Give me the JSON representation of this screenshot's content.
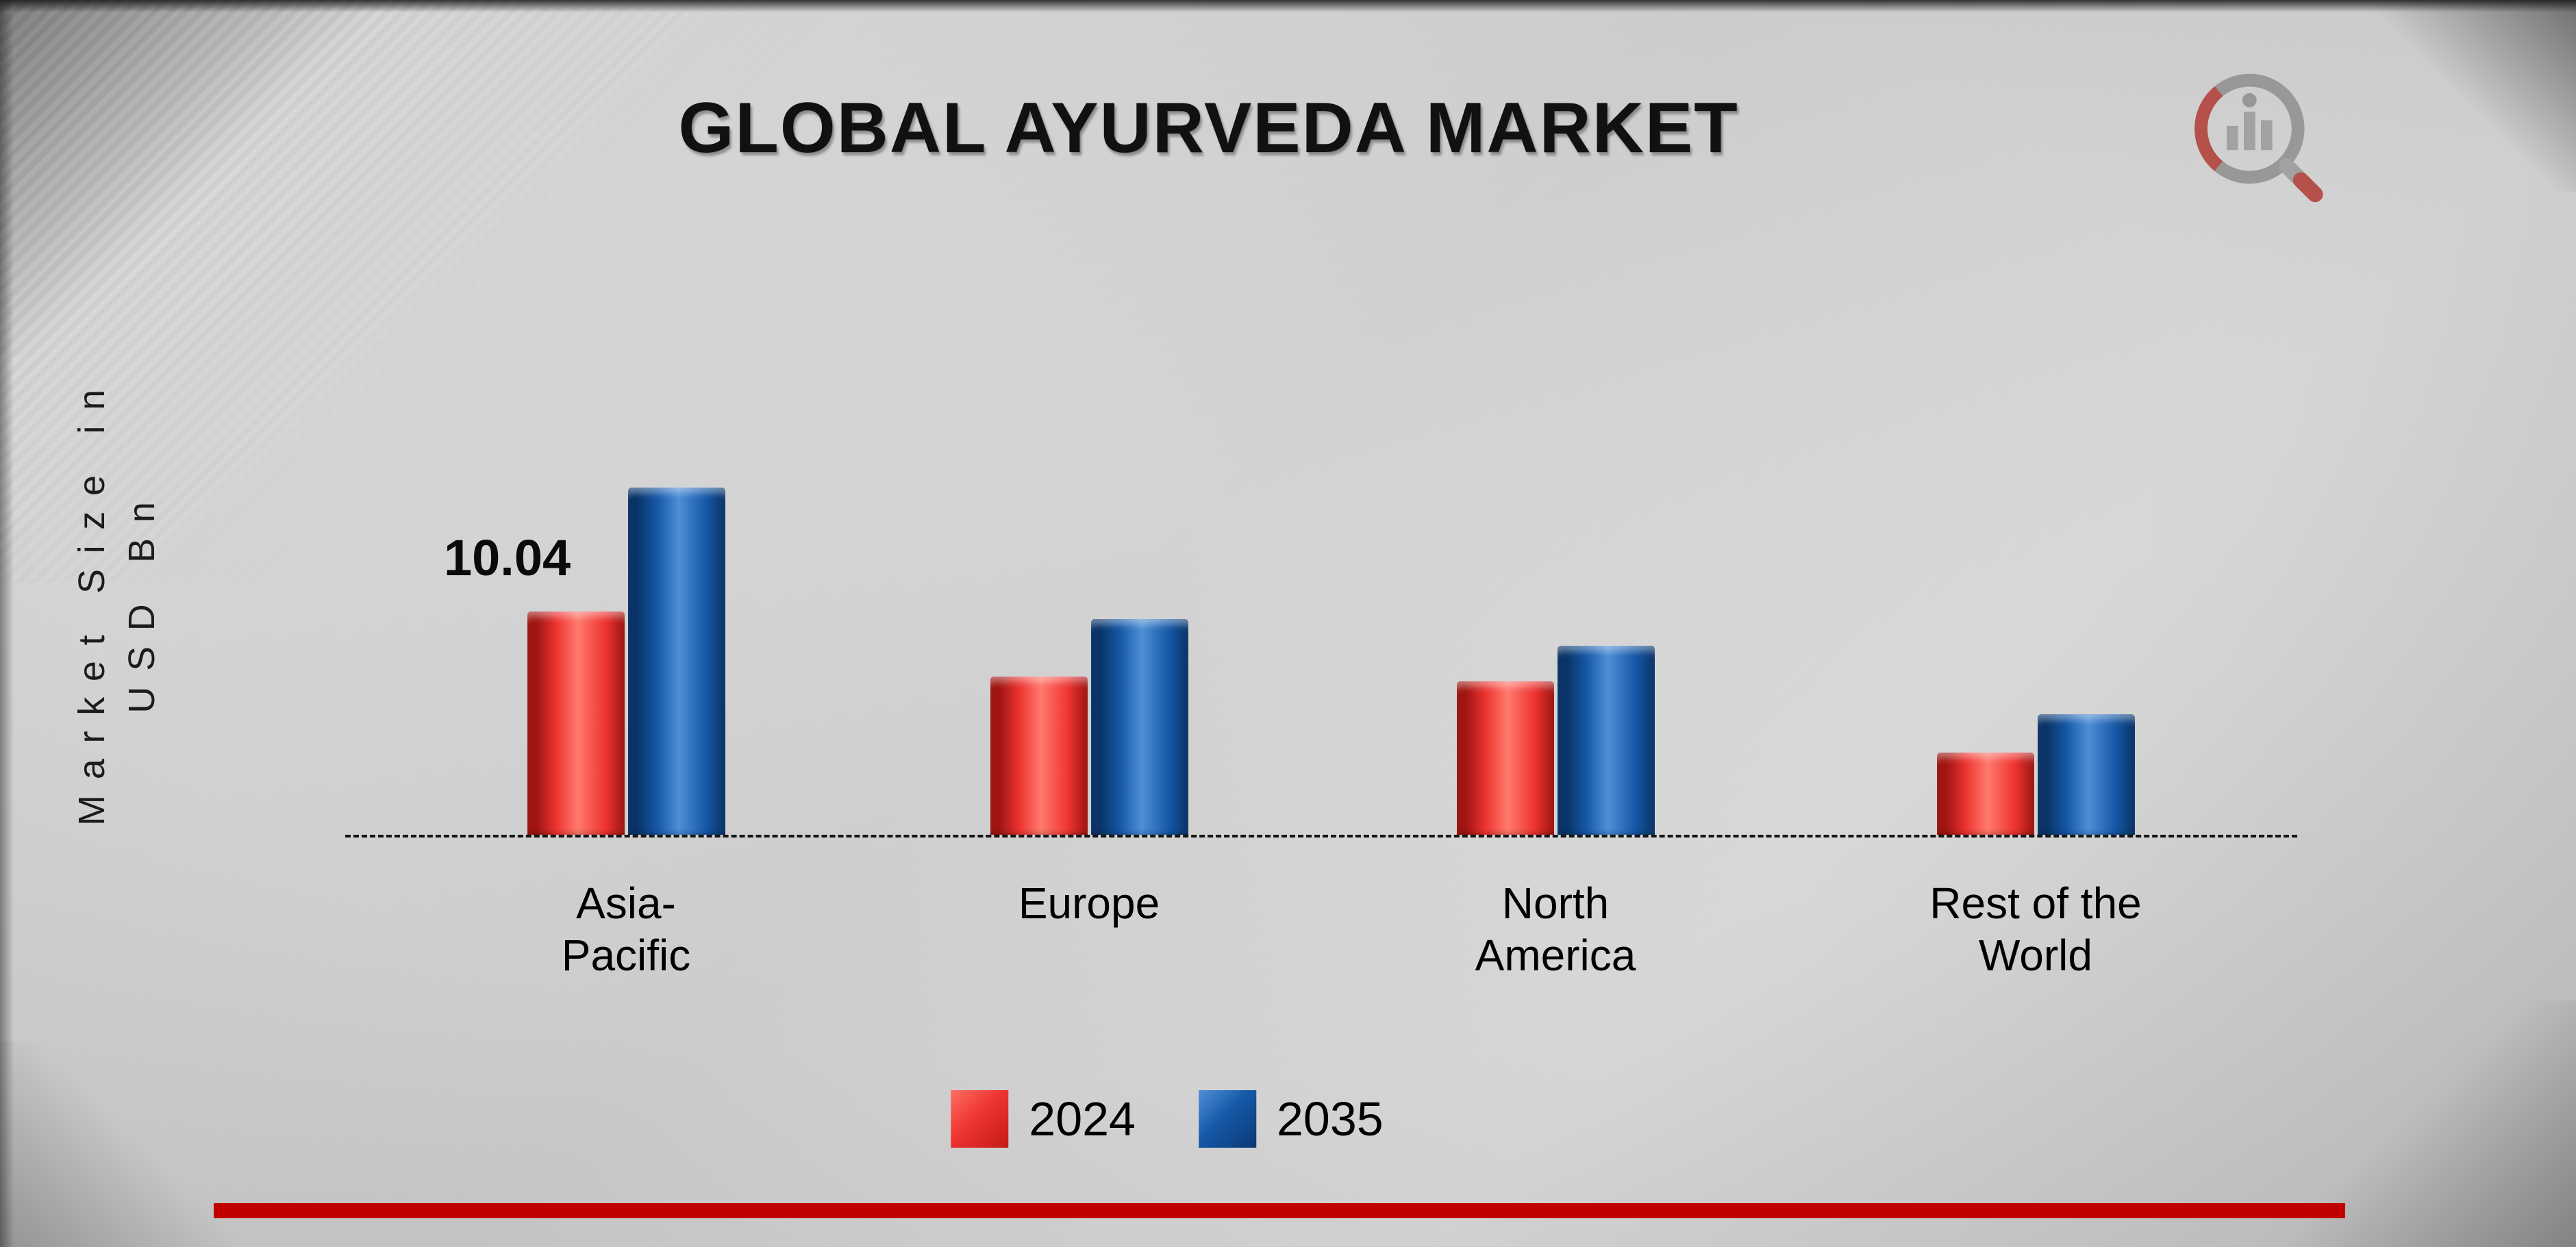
{
  "title": "GLOBAL AYURVEDA MARKET",
  "ylabel": "Market Size in\nUSD Bn",
  "chart_data": {
    "type": "bar",
    "title": "GLOBAL AYURVEDA MARKET",
    "ylabel": "Market Size in USD Bn",
    "categories": [
      "Asia-\nPacific",
      "Europe",
      "North\nAmerica",
      "Rest of the\nWorld"
    ],
    "series": [
      {
        "name": "2024",
        "color_main": "#ee3431",
        "color_dark": "#9e1511",
        "color_light": "#ff7a6e",
        "values": [
          10.04,
          7.1,
          6.9,
          3.7
        ]
      },
      {
        "name": "2035",
        "color_main": "#1558a7",
        "color_dark": "#0a3367",
        "color_light": "#4e8fd6",
        "values": [
          15.6,
          9.7,
          8.5,
          5.4
        ]
      }
    ],
    "data_labels": [
      "10.04"
    ],
    "axis_line_style": "dashed",
    "grid": "off",
    "legend_position": "bottom",
    "ylim": [
      0,
      16
    ]
  },
  "legend": {
    "label_2024": "2024",
    "label_2035": "2035"
  },
  "accent_colors": {
    "bottom_rule": "#c00000",
    "bar_2024": "#ee3431",
    "bar_2035": "#1558a7"
  }
}
